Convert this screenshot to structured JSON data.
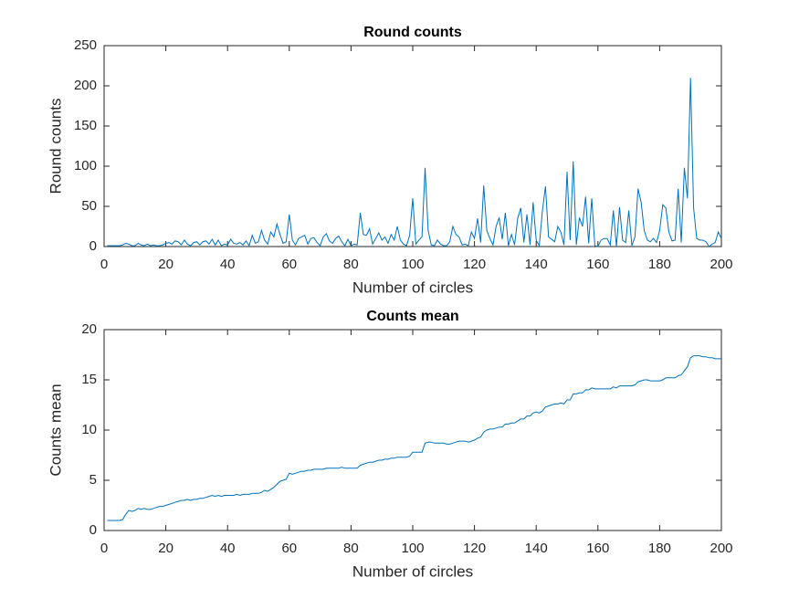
{
  "chart_data": [
    {
      "type": "line",
      "title": "Round counts",
      "x_label": "Number of circles",
      "y_label": "Round counts",
      "color": "#0072bd",
      "x": [
        1,
        2,
        3,
        4,
        5,
        6,
        7,
        8,
        9,
        10,
        11,
        12,
        13,
        14,
        15,
        16,
        17,
        18,
        19,
        20,
        21,
        22,
        23,
        24,
        25,
        26,
        27,
        28,
        29,
        30,
        31,
        32,
        33,
        34,
        35,
        36,
        37,
        38,
        39,
        40,
        41,
        42,
        43,
        44,
        45,
        46,
        47,
        48,
        49,
        50,
        51,
        52,
        53,
        54,
        55,
        56,
        57,
        58,
        59,
        60,
        61,
        62,
        63,
        64,
        65,
        66,
        67,
        68,
        69,
        70,
        71,
        72,
        73,
        74,
        75,
        76,
        77,
        78,
        79,
        80,
        81,
        82,
        83,
        84,
        85,
        86,
        87,
        88,
        89,
        90,
        91,
        92,
        93,
        94,
        95,
        96,
        97,
        98,
        99,
        100,
        101,
        102,
        103,
        104,
        105,
        106,
        107,
        108,
        109,
        110,
        111,
        112,
        113,
        114,
        115,
        116,
        117,
        118,
        119,
        120,
        121,
        122,
        123,
        124,
        125,
        126,
        127,
        128,
        129,
        130,
        131,
        132,
        133,
        134,
        135,
        136,
        137,
        138,
        139,
        140,
        141,
        142,
        143,
        144,
        145,
        146,
        147,
        148,
        149,
        150,
        151,
        152,
        153,
        154,
        155,
        156,
        157,
        158,
        159,
        160,
        161,
        162,
        163,
        164,
        165,
        166,
        167,
        168,
        169,
        170,
        171,
        172,
        173,
        174,
        175,
        176,
        177,
        178,
        179,
        180,
        181,
        182,
        183,
        184,
        185,
        186,
        187,
        188,
        189,
        190,
        191,
        192,
        193,
        194,
        195,
        196,
        197,
        198,
        199,
        200
      ],
      "values": [
        1,
        1,
        1,
        1,
        1,
        2,
        4,
        3,
        1,
        1,
        4,
        2,
        1,
        3,
        1,
        2,
        1,
        1,
        2,
        4,
        5,
        3,
        7,
        6,
        2,
        8,
        3,
        1,
        5,
        6,
        2,
        6,
        7,
        3,
        9,
        2,
        8,
        1,
        3,
        2,
        9,
        4,
        3,
        5,
        2,
        7,
        1,
        14,
        4,
        6,
        20,
        8,
        3,
        18,
        12,
        28,
        15,
        4,
        6,
        40,
        8,
        2,
        10,
        12,
        14,
        3,
        10,
        11,
        5,
        1,
        12,
        16,
        7,
        4,
        10,
        13,
        6,
        1,
        9,
        1,
        3,
        2,
        42,
        15,
        14,
        22,
        3,
        10,
        17,
        8,
        12,
        4,
        15,
        8,
        25,
        8,
        3,
        1,
        14,
        60,
        3,
        8,
        12,
        98,
        20,
        2,
        1,
        8,
        3,
        1,
        1,
        6,
        25,
        15,
        12,
        2,
        3,
        1,
        18,
        10,
        35,
        5,
        76,
        20,
        10,
        2,
        25,
        36,
        9,
        42,
        1,
        15,
        2,
        35,
        48,
        5,
        40,
        2,
        55,
        8,
        1,
        44,
        75,
        12,
        9,
        6,
        25,
        18,
        2,
        93,
        8,
        106,
        2,
        36,
        25,
        62,
        4,
        60,
        1,
        0,
        8,
        10,
        10,
        2,
        45,
        0,
        49,
        8,
        5,
        45,
        1,
        12,
        72,
        55,
        20,
        8,
        6,
        10,
        5,
        20,
        52,
        48,
        18,
        7,
        8,
        72,
        5,
        98,
        60,
        210,
        48,
        10,
        8,
        8,
        6,
        0,
        3,
        5,
        18,
        10
      ],
      "xlim": [
        0,
        200
      ],
      "ylim": [
        0,
        250
      ],
      "xticks": [
        0,
        20,
        40,
        60,
        80,
        100,
        120,
        140,
        160,
        180,
        200
      ],
      "yticks": [
        0,
        50,
        100,
        150,
        200,
        250
      ]
    },
    {
      "type": "line",
      "title": "Counts mean",
      "x_label": "Number of circles",
      "y_label": "Counts mean",
      "color": "#0072bd",
      "x": [
        1,
        2,
        3,
        4,
        5,
        6,
        7,
        8,
        9,
        10,
        11,
        12,
        13,
        14,
        15,
        16,
        17,
        18,
        19,
        20,
        21,
        22,
        23,
        24,
        25,
        26,
        27,
        28,
        29,
        30,
        31,
        32,
        33,
        34,
        35,
        36,
        37,
        38,
        39,
        40,
        41,
        42,
        43,
        44,
        45,
        46,
        47,
        48,
        49,
        50,
        51,
        52,
        53,
        54,
        55,
        56,
        57,
        58,
        59,
        60,
        61,
        62,
        63,
        64,
        65,
        66,
        67,
        68,
        69,
        70,
        71,
        72,
        73,
        74,
        75,
        76,
        77,
        78,
        79,
        80,
        81,
        82,
        83,
        84,
        85,
        86,
        87,
        88,
        89,
        90,
        91,
        92,
        93,
        94,
        95,
        96,
        97,
        98,
        99,
        100,
        101,
        102,
        103,
        104,
        105,
        106,
        107,
        108,
        109,
        110,
        111,
        112,
        113,
        114,
        115,
        116,
        117,
        118,
        119,
        120,
        121,
        122,
        123,
        124,
        125,
        126,
        127,
        128,
        129,
        130,
        131,
        132,
        133,
        134,
        135,
        136,
        137,
        138,
        139,
        140,
        141,
        142,
        143,
        144,
        145,
        146,
        147,
        148,
        149,
        150,
        151,
        152,
        153,
        154,
        155,
        156,
        157,
        158,
        159,
        160,
        161,
        162,
        163,
        164,
        165,
        166,
        167,
        168,
        169,
        170,
        171,
        172,
        173,
        174,
        175,
        176,
        177,
        178,
        179,
        180,
        181,
        182,
        183,
        184,
        185,
        186,
        187,
        188,
        189,
        190,
        191,
        192,
        193,
        194,
        195,
        196,
        197,
        198,
        199,
        200
      ],
      "values": [
        1,
        1,
        1,
        1,
        1,
        1.1,
        1.6,
        2,
        1.9,
        2,
        2.2,
        2.1,
        2.2,
        2.1,
        2.1,
        2.2,
        2.3,
        2.4,
        2.4,
        2.5,
        2.6,
        2.7,
        2.8,
        2.9,
        3,
        3,
        3.1,
        3,
        3.1,
        3.1,
        3.2,
        3.2,
        3.3,
        3.4,
        3.5,
        3.4,
        3.5,
        3.4,
        3.5,
        3.5,
        3.5,
        3.5,
        3.6,
        3.5,
        3.6,
        3.6,
        3.6,
        3.7,
        3.7,
        3.7,
        3.8,
        4,
        3.9,
        4.1,
        4.3,
        4.6,
        4.9,
        5,
        5.1,
        5.7,
        5.6,
        5.7,
        5.8,
        5.9,
        5.9,
        6,
        6,
        6.1,
        6.1,
        6.1,
        6.1,
        6.2,
        6.2,
        6.2,
        6.2,
        6.2,
        6.3,
        6.2,
        6.2,
        6.2,
        6.2,
        6.2,
        6.5,
        6.6,
        6.7,
        6.8,
        6.8,
        6.9,
        7,
        7,
        7.1,
        7.1,
        7.2,
        7.2,
        7.3,
        7.3,
        7.3,
        7.3,
        7.4,
        7.8,
        7.8,
        7.8,
        7.8,
        8.7,
        8.8,
        8.8,
        8.7,
        8.7,
        8.7,
        8.7,
        8.6,
        8.6,
        8.7,
        8.8,
        8.9,
        8.9,
        8.9,
        8.8,
        8.9,
        9,
        9.2,
        9.3,
        9.8,
        10,
        10.1,
        10.1,
        10.2,
        10.3,
        10.3,
        10.6,
        10.6,
        10.7,
        10.7,
        10.9,
        11.1,
        11.1,
        11.4,
        11.4,
        11.7,
        11.8,
        11.7,
        11.9,
        12.3,
        12.4,
        12.5,
        12.6,
        12.6,
        12.7,
        12.6,
        13,
        13,
        13.6,
        13.6,
        13.7,
        13.7,
        14,
        14,
        14.2,
        14.1,
        14.1,
        14.1,
        14.1,
        14.1,
        14.1,
        14.3,
        14.2,
        14.4,
        14.4,
        14.4,
        14.4,
        14.4,
        14.5,
        14.8,
        14.9,
        15,
        15,
        14.9,
        14.9,
        14.9,
        14.9,
        15,
        15.2,
        15.2,
        15.2,
        15.2,
        15.4,
        15.5,
        15.9,
        16.3,
        17.2,
        17.4,
        17.4,
        17.4,
        17.3,
        17.3,
        17.2,
        17.2,
        17.1,
        17.1,
        17.1
      ],
      "xlim": [
        0,
        200
      ],
      "ylim": [
        0,
        20
      ],
      "xticks": [
        0,
        20,
        40,
        60,
        80,
        100,
        120,
        140,
        160,
        180,
        200
      ],
      "yticks": [
        0,
        5,
        10,
        15,
        20
      ]
    }
  ]
}
